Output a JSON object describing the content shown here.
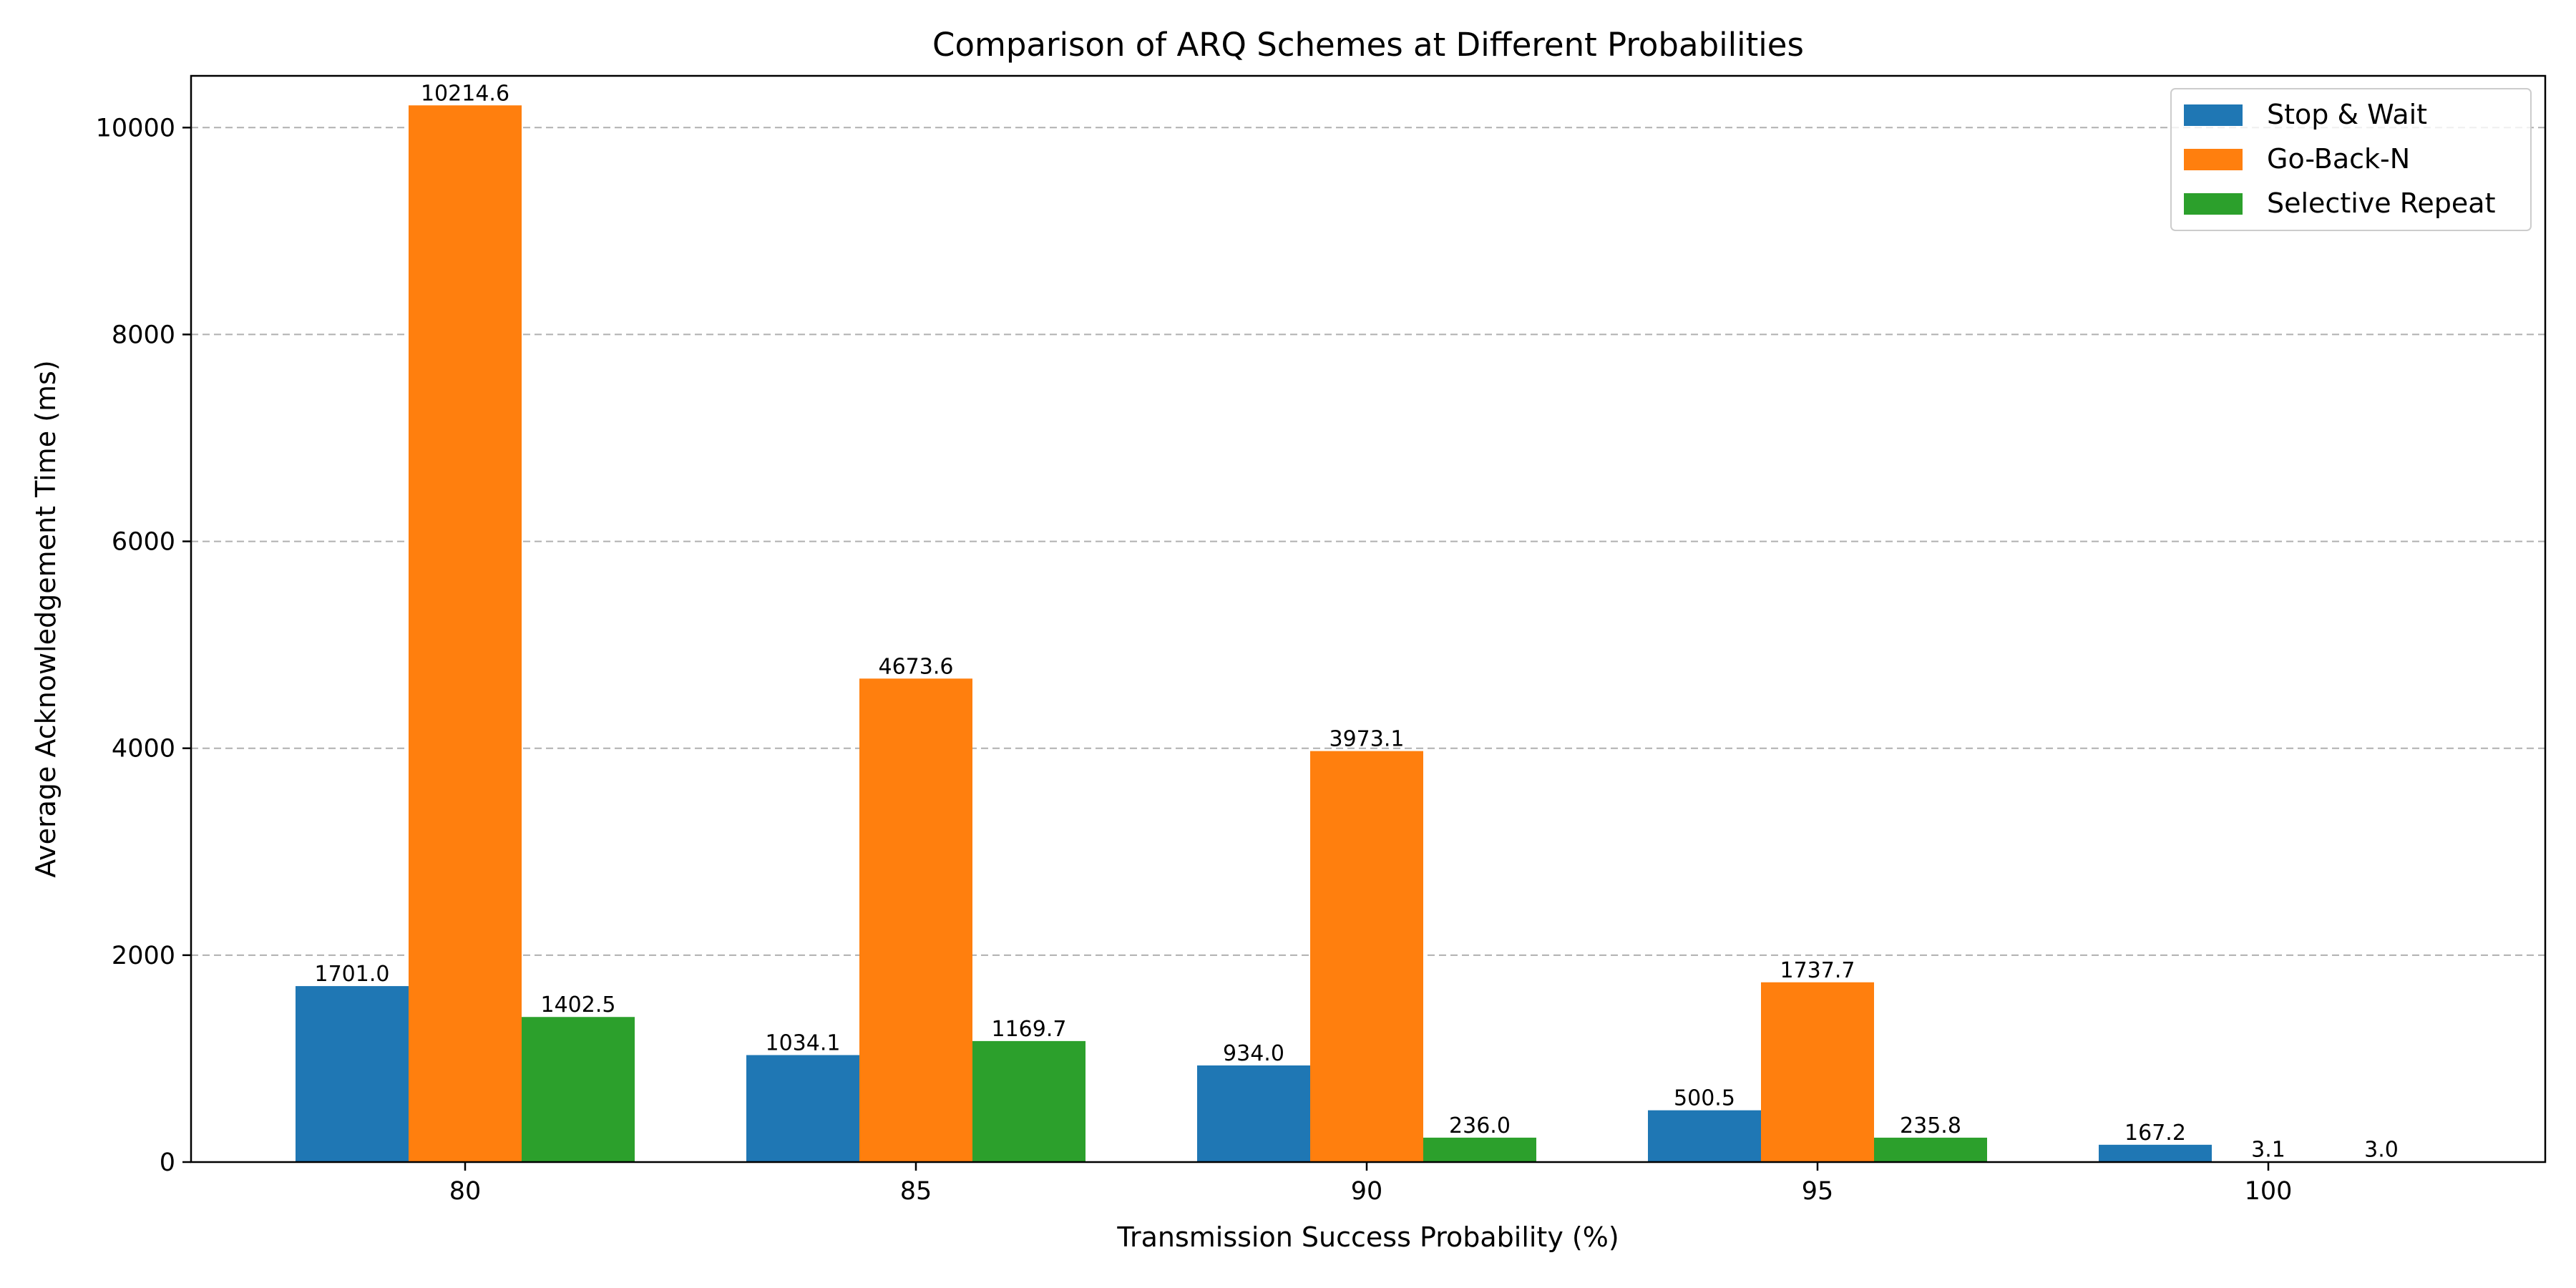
{
  "chart_data": {
    "type": "bar",
    "title": "Comparison of ARQ Schemes at Different Probabilities",
    "xlabel": "Transmission Success Probability (%)",
    "ylabel": "Average Acknowledgement Time (ms)",
    "categories": [
      "80",
      "85",
      "90",
      "95",
      "100"
    ],
    "series": [
      {
        "name": "Stop & Wait",
        "color": "#1f77b4",
        "values": [
          1701.0,
          1034.1,
          934.0,
          500.5,
          167.2
        ],
        "labels": [
          "1701.0",
          "1034.1",
          "934.0",
          "500.5",
          "167.2"
        ]
      },
      {
        "name": "Go-Back-N",
        "color": "#ff7f0e",
        "values": [
          10214.6,
          4673.6,
          3973.1,
          1737.7,
          3.1
        ],
        "labels": [
          "10214.6",
          "4673.6",
          "3973.1",
          "1737.7",
          "3.1"
        ]
      },
      {
        "name": "Selective Repeat",
        "color": "#2ca02c",
        "values": [
          1402.5,
          1169.7,
          236.0,
          235.8,
          3.0
        ],
        "labels": [
          "1402.5",
          "1169.7",
          "236.0",
          "235.8",
          "3.0"
        ]
      }
    ],
    "ylim": [
      0,
      10500
    ],
    "yticks": [
      0,
      2000,
      4000,
      6000,
      8000,
      10000
    ],
    "grid": "y-dashed",
    "legend": "top-right"
  }
}
